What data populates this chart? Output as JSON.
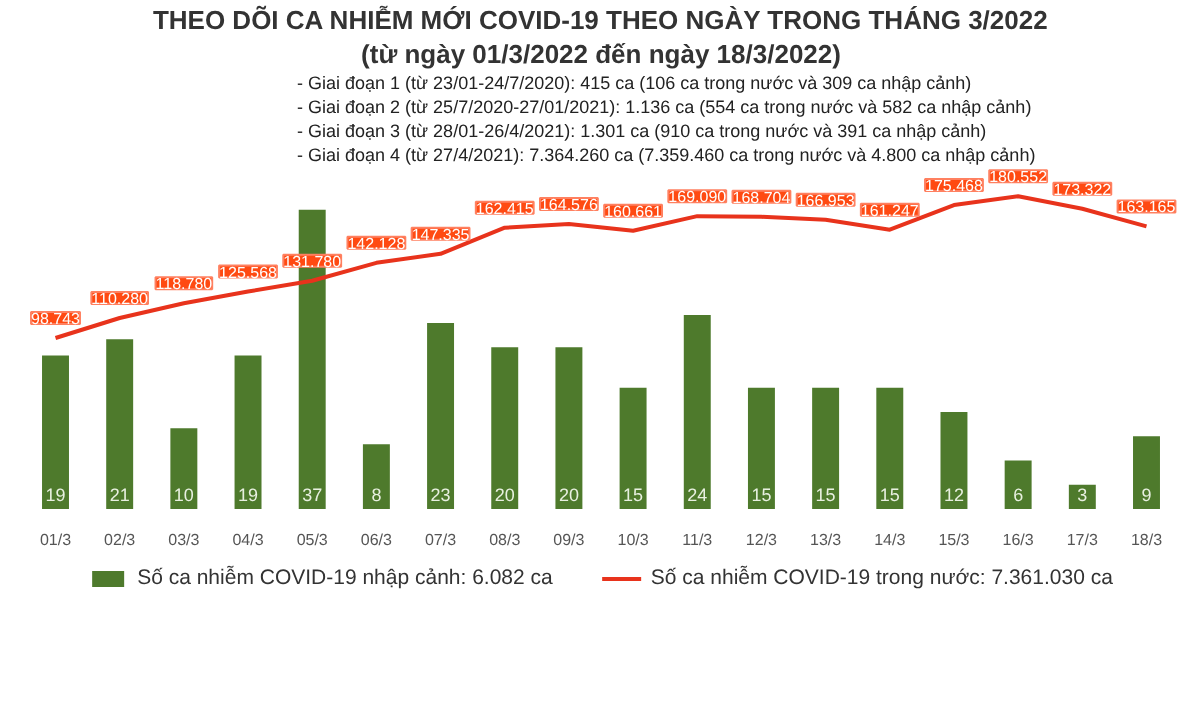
{
  "chart_data": {
    "type": "bar",
    "title": "THEO DÕI CA NHIỄM MỚI COVID-19 THEO NGÀY TRONG THÁNG 3/2022",
    "subtitle": "(từ ngày 01/3/2022 đến ngày 18/3/2022)",
    "annotations": [
      "- Giai đoạn 1 (từ 23/01-24/7/2020): 415 ca (106 ca trong nước và 309 ca nhập cảnh)",
      "- Giai đoạn 2 (từ 25/7/2020-27/01/2021): 1.136 ca (554 ca trong nước và 582 ca nhập cảnh)",
      "- Giai đoạn 3 (từ 28/01-26/4/2021): 1.301 ca (910 ca trong nước và 391 ca nhập cảnh)",
      "- Giai đoạn 4 (từ 27/4/2021): 7.364.260 ca (7.359.460 ca trong nước và 4.800 ca nhập cảnh)"
    ],
    "categories": [
      "01/3",
      "02/3",
      "03/3",
      "04/3",
      "05/3",
      "06/3",
      "07/3",
      "08/3",
      "09/3",
      "10/3",
      "11/3",
      "12/3",
      "13/3",
      "14/3",
      "15/3",
      "16/3",
      "17/3",
      "18/3"
    ],
    "series": [
      {
        "name": "Số ca nhiễm COVID-19 nhập cảnh: 6.082 ca",
        "color": "#4e7a2c",
        "values": [
          19,
          21,
          10,
          19,
          37,
          8,
          23,
          20,
          20,
          15,
          24,
          15,
          15,
          15,
          12,
          6,
          3,
          9
        ],
        "value_labels": [
          "19",
          "21",
          "10",
          "19",
          "37",
          "8",
          "23",
          "20",
          "20",
          "15",
          "24",
          "15",
          "15",
          "15",
          "12",
          "6",
          "3",
          "9"
        ]
      },
      {
        "name": "Số ca nhiễm COVID-19 trong nước: 7.361.030 ca",
        "type": "line",
        "axis": "y2",
        "color": "#e8331c",
        "values": [
          98743,
          110280,
          118780,
          125568,
          131780,
          142128,
          147335,
          162415,
          164576,
          160661,
          169090,
          168704,
          166953,
          161247,
          175468,
          180552,
          173322,
          163165
        ],
        "value_labels": [
          "98.743",
          "110.280",
          "118.780",
          "125.568",
          "131.780",
          "142.128",
          "147.335",
          "162.415",
          "164.576",
          "160.661",
          "169.090",
          "168.704",
          "166.953",
          "161.247",
          "175.468",
          "180.552",
          "173.322",
          "163.165"
        ]
      }
    ],
    "data_labels": true,
    "tick_labels": "x",
    "legend": "bottom",
    "line_style": "solid"
  }
}
